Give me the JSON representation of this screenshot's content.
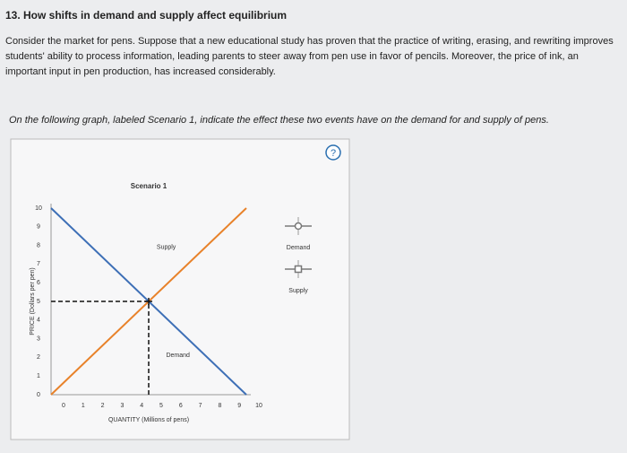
{
  "question": {
    "title": "13. How shifts in demand and supply affect equilibrium",
    "text": "Consider the market for pens. Suppose that a new educational study has proven that the practice of writing, erasing, and rewriting improves students' ability to process information, leading parents to steer away from pen use in favor of pencils. Moreover, the price of ink, an important input in pen production, has increased considerably.",
    "instruction": "On the following graph, labeled Scenario 1, indicate the effect these two events have on the demand for and supply of pens.",
    "help": "?"
  },
  "graph": {
    "type": "line",
    "title": "Scenario 1",
    "x_label": "QUANTITY (Millions of pens)",
    "y_label": "PRICE (Dollars per pen)",
    "xlim": [
      0,
      10
    ],
    "ylim": [
      0,
      10
    ],
    "xticks": [
      0,
      1,
      2,
      3,
      4,
      5,
      6,
      7,
      8,
      9,
      10
    ],
    "yticks": [
      0,
      1,
      2,
      3,
      4,
      5,
      6,
      7,
      8,
      9,
      10
    ],
    "series": [
      {
        "name": "Demand",
        "color": "#3d6fb6",
        "marker": "circle",
        "x": [
          0,
          10
        ],
        "values": [
          10,
          0
        ]
      },
      {
        "name": "Supply",
        "color": "#e8822a",
        "marker": "square",
        "x": [
          0,
          10
        ],
        "values": [
          0,
          10
        ]
      }
    ],
    "equilibrium": {
      "x": 5,
      "y": 5
    }
  }
}
